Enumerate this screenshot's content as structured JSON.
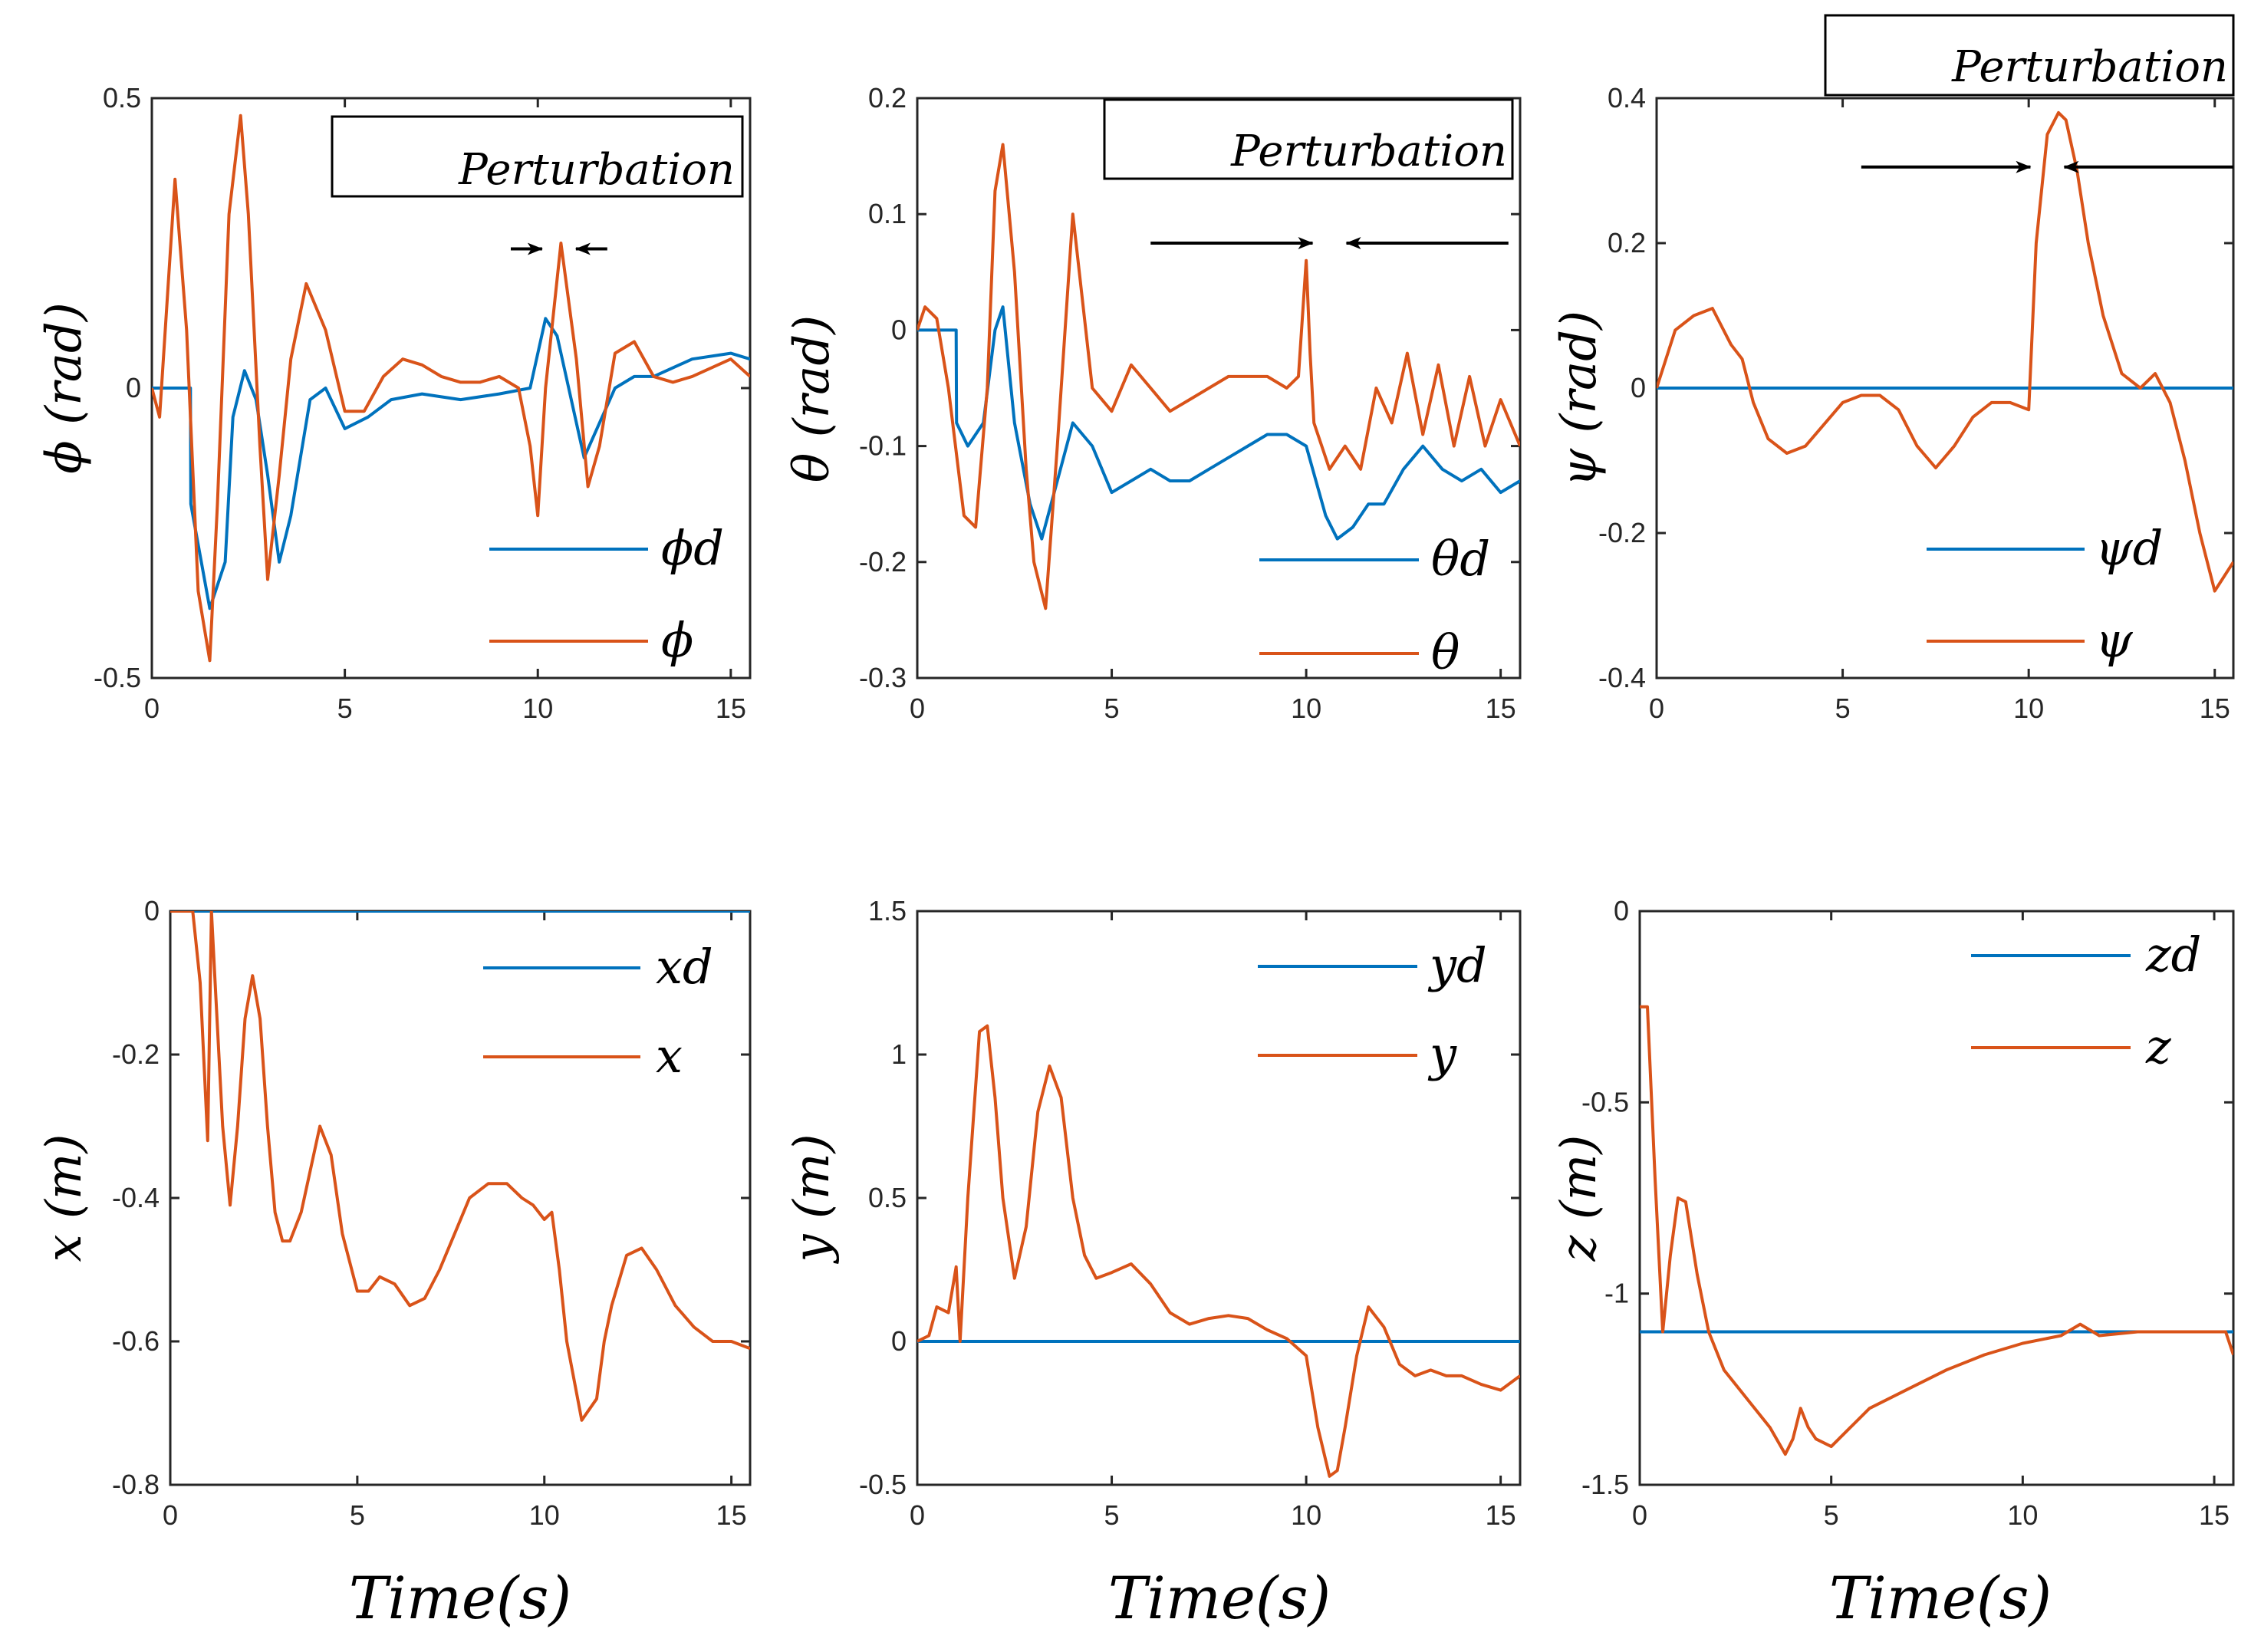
{
  "figure": {
    "colors": {
      "desired": "#0072BD",
      "actual": "#D95319",
      "axis": "#262626"
    },
    "perturbation_label": "Perturbation"
  },
  "chart_data": [
    {
      "id": "phi",
      "type": "line",
      "xlim": [
        0,
        15.5
      ],
      "ylim": [
        -0.5,
        0.5
      ],
      "xticks": [
        0,
        5,
        10,
        15
      ],
      "yticks": [
        0.5,
        0,
        -0.5
      ],
      "ytick_labels": [
        "0.5",
        "0",
        "-0.5"
      ],
      "ylabel": "ϕ (rad)",
      "xlabel": "",
      "legend": [
        "ϕd",
        "ϕ"
      ],
      "legend_pos": "bottom-right",
      "perturbation": {
        "label": "Perturbation",
        "range": [
          9.3,
          11.8
        ],
        "arrow_y": 0.24
      },
      "series": [
        {
          "name": "ϕd",
          "x": [
            0,
            1,
            1.01,
            1.5,
            1.9,
            2.1,
            2.4,
            2.7,
            3.0,
            3.3,
            3.6,
            4.1,
            4.5,
            5.0,
            5.6,
            6.2,
            7.0,
            8.0,
            9.0,
            9.8,
            10.2,
            10.5,
            10.8,
            11.2,
            11.6,
            12.0,
            12.5,
            13.0,
            14.0,
            15.0,
            15.5
          ],
          "y": [
            0,
            0,
            -0.2,
            -0.38,
            -0.3,
            -0.05,
            0.03,
            -0.02,
            -0.15,
            -0.3,
            -0.22,
            -0.02,
            0.0,
            -0.07,
            -0.05,
            -0.02,
            -0.01,
            -0.02,
            -0.01,
            0.0,
            0.12,
            0.09,
            0.0,
            -0.12,
            -0.06,
            0.0,
            0.02,
            0.02,
            0.05,
            0.06,
            0.05
          ]
        },
        {
          "name": "ϕ",
          "x": [
            0,
            0.2,
            0.6,
            0.9,
            1.2,
            1.5,
            1.7,
            2.0,
            2.3,
            2.5,
            2.8,
            3.0,
            3.3,
            3.6,
            4.0,
            4.5,
            5.0,
            5.5,
            6.0,
            6.5,
            7.0,
            7.5,
            8.0,
            8.5,
            9.0,
            9.5,
            9.8,
            10.0,
            10.2,
            10.6,
            11.0,
            11.3,
            11.6,
            12.0,
            12.5,
            13.0,
            13.5,
            14.0,
            15.0,
            15.5
          ],
          "y": [
            0,
            -0.05,
            0.36,
            0.1,
            -0.35,
            -0.47,
            -0.2,
            0.3,
            0.47,
            0.3,
            -0.1,
            -0.33,
            -0.15,
            0.05,
            0.18,
            0.1,
            -0.04,
            -0.04,
            0.02,
            0.05,
            0.04,
            0.02,
            0.01,
            0.01,
            0.02,
            0.0,
            -0.1,
            -0.22,
            0.0,
            0.25,
            0.05,
            -0.17,
            -0.1,
            0.06,
            0.08,
            0.02,
            0.01,
            0.02,
            0.05,
            0.02
          ]
        }
      ]
    },
    {
      "id": "theta",
      "type": "line",
      "xlim": [
        0,
        15.5
      ],
      "ylim": [
        -0.3,
        0.2
      ],
      "xticks": [
        0,
        5,
        10,
        15
      ],
      "yticks": [
        0.2,
        0.1,
        0,
        -0.1,
        -0.2,
        -0.3
      ],
      "ytick_labels": [
        "0.2",
        "0.1",
        "0",
        "-0.1",
        "-0.2",
        "-0.3"
      ],
      "ylabel": "θ (rad)",
      "xlabel": "",
      "legend": [
        "θd",
        "θ"
      ],
      "legend_pos": "bottom-right",
      "perturbation": {
        "label": "Perturbation",
        "range": [
          6.0,
          15.2
        ],
        "arrow_y": 0.075
      },
      "series": [
        {
          "name": "θd",
          "x": [
            0,
            1,
            1.01,
            1.3,
            1.7,
            2.0,
            2.2,
            2.5,
            2.9,
            3.2,
            3.6,
            4.0,
            4.5,
            5.0,
            5.5,
            6.0,
            6.5,
            7.0,
            7.5,
            8.0,
            8.5,
            9.0,
            9.5,
            10.0,
            10.5,
            10.8,
            11.2,
            11.6,
            12.0,
            12.5,
            13.0,
            13.5,
            14.0,
            14.5,
            15.0,
            15.5
          ],
          "y": [
            0,
            0,
            -0.08,
            -0.1,
            -0.08,
            0.0,
            0.02,
            -0.08,
            -0.15,
            -0.18,
            -0.13,
            -0.08,
            -0.1,
            -0.14,
            -0.13,
            -0.12,
            -0.13,
            -0.13,
            -0.12,
            -0.11,
            -0.1,
            -0.09,
            -0.09,
            -0.1,
            -0.16,
            -0.18,
            -0.17,
            -0.15,
            -0.15,
            -0.12,
            -0.1,
            -0.12,
            -0.13,
            -0.12,
            -0.14,
            -0.13
          ]
        },
        {
          "name": "θ",
          "x": [
            0,
            0.2,
            0.5,
            0.8,
            1.2,
            1.5,
            1.8,
            2.0,
            2.2,
            2.5,
            2.8,
            3.0,
            3.3,
            3.6,
            4.0,
            4.5,
            5.0,
            5.5,
            6.0,
            6.5,
            7.0,
            7.5,
            8.0,
            8.5,
            9.0,
            9.5,
            9.8,
            10.0,
            10.1,
            10.2,
            10.4,
            10.6,
            11.0,
            11.4,
            11.8,
            12.2,
            12.6,
            13.0,
            13.4,
            13.8,
            14.2,
            14.6,
            15.0,
            15.5
          ],
          "y": [
            0,
            0.02,
            0.01,
            -0.05,
            -0.16,
            -0.17,
            -0.05,
            0.12,
            0.16,
            0.05,
            -0.12,
            -0.2,
            -0.24,
            -0.1,
            0.1,
            -0.05,
            -0.07,
            -0.03,
            -0.05,
            -0.07,
            -0.06,
            -0.05,
            -0.04,
            -0.04,
            -0.04,
            -0.05,
            -0.04,
            0.06,
            -0.02,
            -0.08,
            -0.1,
            -0.12,
            -0.1,
            -0.12,
            -0.05,
            -0.08,
            -0.02,
            -0.09,
            -0.03,
            -0.1,
            -0.04,
            -0.1,
            -0.06,
            -0.1
          ]
        }
      ]
    },
    {
      "id": "psi",
      "type": "line",
      "xlim": [
        0,
        15.5
      ],
      "ylim": [
        -0.4,
        0.4
      ],
      "xticks": [
        0,
        5,
        10,
        15
      ],
      "yticks": [
        0.4,
        0.2,
        0,
        -0.2,
        -0.4
      ],
      "ytick_labels": [
        "0.4",
        "0.2",
        "0",
        "-0.2",
        "-0.4"
      ],
      "ylabel": "ψ (rad)",
      "xlabel": "",
      "legend": [
        "ψd",
        "ψ"
      ],
      "legend_pos": "bottom-right",
      "perturbation": {
        "label": "Perturbation",
        "range": [
          5.5,
          15.5
        ],
        "arrow_y": 0.305
      },
      "series": [
        {
          "name": "ψd",
          "x": [
            0,
            15.5
          ],
          "y": [
            0,
            0
          ]
        },
        {
          "name": "ψ",
          "x": [
            0,
            0.5,
            1.0,
            1.5,
            2.0,
            2.3,
            2.6,
            3.0,
            3.5,
            4.0,
            4.5,
            5.0,
            5.5,
            6.0,
            6.5,
            7.0,
            7.5,
            8.0,
            8.5,
            9.0,
            9.5,
            10.0,
            10.2,
            10.5,
            10.8,
            11.0,
            11.3,
            11.6,
            12.0,
            12.5,
            13.0,
            13.4,
            13.8,
            14.2,
            14.6,
            15.0,
            15.5
          ],
          "y": [
            0,
            0.08,
            0.1,
            0.11,
            0.06,
            0.04,
            -0.02,
            -0.07,
            -0.09,
            -0.08,
            -0.05,
            -0.02,
            -0.01,
            -0.01,
            -0.03,
            -0.08,
            -0.11,
            -0.08,
            -0.04,
            -0.02,
            -0.02,
            -0.03,
            0.2,
            0.35,
            0.38,
            0.37,
            0.3,
            0.2,
            0.1,
            0.02,
            0.0,
            0.02,
            -0.02,
            -0.1,
            -0.2,
            -0.28,
            -0.24
          ]
        }
      ]
    },
    {
      "id": "x",
      "type": "line",
      "xlim": [
        0,
        15.5
      ],
      "ylim": [
        -0.8,
        0
      ],
      "xticks": [
        0,
        5,
        10,
        15
      ],
      "yticks": [
        0,
        -0.2,
        -0.4,
        -0.6,
        -0.8
      ],
      "ytick_labels": [
        "0",
        "-0.2",
        "-0.4",
        "-0.6",
        "-0.8"
      ],
      "ylabel": "x (m)",
      "xlabel": "Time(s)",
      "legend": [
        "xd",
        "x"
      ],
      "legend_pos": "top-right",
      "series": [
        {
          "name": "xd",
          "x": [
            0,
            15.5
          ],
          "y": [
            0,
            0
          ]
        },
        {
          "name": "x",
          "x": [
            0,
            0.3,
            0.6,
            0.8,
            1.0,
            1.1,
            1.2,
            1.4,
            1.6,
            1.8,
            2.0,
            2.2,
            2.4,
            2.6,
            2.8,
            3.0,
            3.2,
            3.5,
            4.0,
            4.3,
            4.6,
            5.0,
            5.3,
            5.6,
            6.0,
            6.4,
            6.8,
            7.2,
            7.6,
            8.0,
            8.5,
            9.0,
            9.4,
            9.7,
            10.0,
            10.2,
            10.4,
            10.6,
            11.0,
            11.4,
            11.6,
            11.8,
            12.2,
            12.6,
            13.0,
            13.5,
            14.0,
            14.5,
            15.0,
            15.5
          ],
          "y": [
            0,
            0,
            0,
            -0.1,
            -0.32,
            0.0,
            -0.1,
            -0.3,
            -0.41,
            -0.3,
            -0.15,
            -0.09,
            -0.15,
            -0.3,
            -0.42,
            -0.46,
            -0.46,
            -0.42,
            -0.3,
            -0.34,
            -0.45,
            -0.53,
            -0.53,
            -0.51,
            -0.52,
            -0.55,
            -0.54,
            -0.5,
            -0.45,
            -0.4,
            -0.38,
            -0.38,
            -0.4,
            -0.41,
            -0.43,
            -0.42,
            -0.5,
            -0.6,
            -0.71,
            -0.68,
            -0.6,
            -0.55,
            -0.48,
            -0.47,
            -0.5,
            -0.55,
            -0.58,
            -0.6,
            -0.6,
            -0.61
          ]
        }
      ]
    },
    {
      "id": "y",
      "type": "line",
      "xlim": [
        0,
        15.5
      ],
      "ylim": [
        -0.5,
        1.5
      ],
      "xticks": [
        0,
        5,
        10,
        15
      ],
      "yticks": [
        1.5,
        1,
        0.5,
        0,
        -0.5
      ],
      "ytick_labels": [
        "1.5",
        "1",
        "0.5",
        "0",
        "-0.5"
      ],
      "ylabel": "y (m)",
      "xlabel": "Time(s)",
      "legend": [
        "yd",
        "y"
      ],
      "legend_pos": "top-right",
      "series": [
        {
          "name": "yd",
          "x": [
            0,
            15.5
          ],
          "y": [
            0,
            0
          ]
        },
        {
          "name": "y",
          "x": [
            0,
            0.3,
            0.5,
            0.8,
            1.0,
            1.1,
            1.3,
            1.6,
            1.8,
            2.0,
            2.2,
            2.5,
            2.8,
            3.1,
            3.4,
            3.7,
            4.0,
            4.3,
            4.6,
            5.0,
            5.5,
            6.0,
            6.5,
            7.0,
            7.5,
            8.0,
            8.5,
            9.0,
            9.5,
            10.0,
            10.3,
            10.6,
            10.8,
            11.0,
            11.3,
            11.6,
            12.0,
            12.4,
            12.8,
            13.2,
            13.6,
            14.0,
            14.5,
            15.0,
            15.5
          ],
          "y": [
            0,
            0.02,
            0.12,
            0.1,
            0.26,
            0.0,
            0.5,
            1.08,
            1.1,
            0.85,
            0.5,
            0.22,
            0.4,
            0.8,
            0.96,
            0.85,
            0.5,
            0.3,
            0.22,
            0.24,
            0.27,
            0.2,
            0.1,
            0.06,
            0.08,
            0.09,
            0.08,
            0.04,
            0.01,
            -0.05,
            -0.3,
            -0.47,
            -0.45,
            -0.3,
            -0.05,
            0.12,
            0.05,
            -0.08,
            -0.12,
            -0.1,
            -0.12,
            -0.12,
            -0.15,
            -0.17,
            -0.12
          ]
        }
      ]
    },
    {
      "id": "z",
      "type": "line",
      "xlim": [
        0,
        15.5
      ],
      "ylim": [
        -1.5,
        0
      ],
      "xticks": [
        0,
        5,
        10,
        15
      ],
      "yticks": [
        0,
        -0.5,
        -1,
        -1.5
      ],
      "ytick_labels": [
        "0",
        "-0.5",
        "-1",
        "-1.5"
      ],
      "ylabel": "z (m)",
      "xlabel": "Time(s)",
      "legend": [
        "zd",
        "z"
      ],
      "legend_pos": "top-right",
      "series": [
        {
          "name": "zd",
          "x": [
            0,
            15.5
          ],
          "y": [
            -1.1,
            -1.1
          ]
        },
        {
          "name": "z",
          "x": [
            0,
            0.2,
            0.4,
            0.6,
            0.8,
            1.0,
            1.2,
            1.5,
            1.8,
            2.2,
            2.6,
            3.0,
            3.4,
            3.8,
            4.0,
            4.2,
            4.4,
            4.6,
            5.0,
            5.5,
            6.0,
            7.0,
            8.0,
            9.0,
            10.0,
            11.0,
            11.5,
            12.0,
            13.0,
            14.0,
            15.0,
            15.3,
            15.5
          ],
          "y": [
            -0.25,
            -0.25,
            -0.7,
            -1.1,
            -0.9,
            -0.75,
            -0.76,
            -0.95,
            -1.1,
            -1.2,
            -1.25,
            -1.3,
            -1.35,
            -1.42,
            -1.38,
            -1.3,
            -1.35,
            -1.38,
            -1.4,
            -1.35,
            -1.3,
            -1.25,
            -1.2,
            -1.16,
            -1.13,
            -1.11,
            -1.08,
            -1.11,
            -1.1,
            -1.1,
            -1.1,
            -1.1,
            -1.16
          ]
        }
      ]
    }
  ]
}
